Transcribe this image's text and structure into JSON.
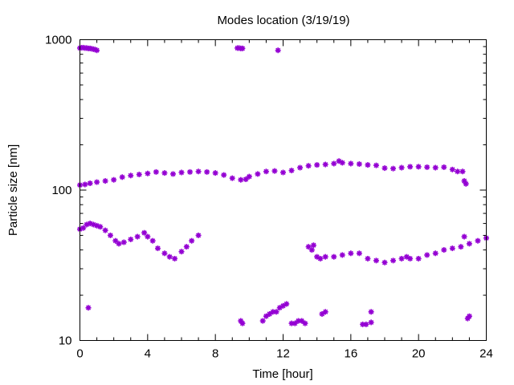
{
  "chart_data": {
    "type": "scatter",
    "title": "Modes location (3/19/19)",
    "xlabel": "Time [hour]",
    "ylabel": "Particle size [nm]",
    "xlim": [
      0,
      24
    ],
    "ylim": [
      10,
      1000
    ],
    "yscale": "log",
    "grid": false,
    "legend": "none",
    "xticks": [
      0,
      4,
      8,
      12,
      16,
      20,
      24
    ],
    "yticks": [
      10,
      100,
      1000
    ],
    "marker_color": "#9400D3",
    "series": [
      {
        "points": [
          [
            0.0,
            880
          ],
          [
            0.1,
            885
          ],
          [
            0.2,
            885
          ],
          [
            0.3,
            880
          ],
          [
            0.4,
            880
          ],
          [
            0.5,
            875
          ],
          [
            0.6,
            875
          ],
          [
            0.7,
            870
          ],
          [
            0.8,
            865
          ],
          [
            0.9,
            860
          ],
          [
            1.0,
            850
          ],
          [
            9.3,
            880
          ],
          [
            9.4,
            880
          ],
          [
            9.5,
            875
          ],
          [
            9.6,
            875
          ],
          [
            11.7,
            850
          ],
          [
            0.0,
            108
          ],
          [
            0.3,
            109
          ],
          [
            0.6,
            111
          ],
          [
            1.0,
            113
          ],
          [
            1.5,
            115
          ],
          [
            2.0,
            117
          ],
          [
            2.5,
            122
          ],
          [
            3.0,
            125
          ],
          [
            3.5,
            127
          ],
          [
            4.0,
            129
          ],
          [
            4.5,
            132
          ],
          [
            5.0,
            130
          ],
          [
            5.5,
            128
          ],
          [
            6.0,
            131
          ],
          [
            6.5,
            132
          ],
          [
            7.0,
            133
          ],
          [
            7.5,
            132
          ],
          [
            8.0,
            130
          ],
          [
            8.5,
            126
          ],
          [
            9.0,
            120
          ],
          [
            9.5,
            117
          ],
          [
            9.8,
            118
          ],
          [
            10.0,
            123
          ],
          [
            10.5,
            128
          ],
          [
            11.0,
            133
          ],
          [
            11.5,
            134
          ],
          [
            12.0,
            131
          ],
          [
            12.5,
            135
          ],
          [
            13.0,
            141
          ],
          [
            13.5,
            145
          ],
          [
            14.0,
            147
          ],
          [
            14.5,
            148
          ],
          [
            15.0,
            150
          ],
          [
            15.3,
            156
          ],
          [
            15.5,
            152
          ],
          [
            16.0,
            150
          ],
          [
            16.5,
            149
          ],
          [
            17.0,
            147
          ],
          [
            17.5,
            146
          ],
          [
            18.0,
            140
          ],
          [
            18.5,
            139
          ],
          [
            19.0,
            141
          ],
          [
            19.5,
            143
          ],
          [
            20.0,
            143
          ],
          [
            20.5,
            142
          ],
          [
            21.0,
            141
          ],
          [
            21.5,
            142
          ],
          [
            22.0,
            137
          ],
          [
            22.3,
            133
          ],
          [
            22.6,
            133
          ],
          [
            22.7,
            115
          ],
          [
            22.8,
            110
          ],
          [
            0.0,
            55
          ],
          [
            0.2,
            56
          ],
          [
            0.4,
            59
          ],
          [
            0.6,
            60
          ],
          [
            0.8,
            59
          ],
          [
            1.0,
            58
          ],
          [
            1.2,
            57
          ],
          [
            1.5,
            54
          ],
          [
            1.8,
            50
          ],
          [
            2.1,
            46
          ],
          [
            2.3,
            44
          ],
          [
            2.6,
            45
          ],
          [
            3.0,
            47
          ],
          [
            3.4,
            49
          ],
          [
            3.8,
            52
          ],
          [
            4.0,
            49
          ],
          [
            4.3,
            46
          ],
          [
            4.6,
            41
          ],
          [
            5.0,
            38
          ],
          [
            5.3,
            36
          ],
          [
            5.6,
            35
          ],
          [
            6.0,
            39
          ],
          [
            6.3,
            42
          ],
          [
            6.6,
            46
          ],
          [
            7.0,
            50
          ],
          [
            13.5,
            42
          ],
          [
            13.7,
            40
          ],
          [
            13.8,
            43
          ],
          [
            14.0,
            36
          ],
          [
            14.2,
            35
          ],
          [
            14.5,
            36
          ],
          [
            15.0,
            36
          ],
          [
            15.5,
            37
          ],
          [
            16.0,
            38
          ],
          [
            16.5,
            38
          ],
          [
            17.0,
            35
          ],
          [
            17.5,
            34
          ],
          [
            18.0,
            33
          ],
          [
            18.5,
            34
          ],
          [
            19.0,
            35
          ],
          [
            19.3,
            36
          ],
          [
            19.5,
            35
          ],
          [
            20.0,
            35
          ],
          [
            20.5,
            37
          ],
          [
            21.0,
            38
          ],
          [
            21.5,
            40
          ],
          [
            22.0,
            41
          ],
          [
            22.5,
            42
          ],
          [
            22.7,
            49
          ],
          [
            23.0,
            44
          ],
          [
            23.5,
            46
          ],
          [
            24.0,
            48
          ],
          [
            0.5,
            16.5
          ],
          [
            9.5,
            13.5
          ],
          [
            9.6,
            13.0
          ],
          [
            10.8,
            13.5
          ],
          [
            11.0,
            14.5
          ],
          [
            11.2,
            15.0
          ],
          [
            11.4,
            15.5
          ],
          [
            11.6,
            15.5
          ],
          [
            11.8,
            16.5
          ],
          [
            12.0,
            17.0
          ],
          [
            12.2,
            17.5
          ],
          [
            12.5,
            13.0
          ],
          [
            12.7,
            13.0
          ],
          [
            12.9,
            13.5
          ],
          [
            13.1,
            13.5
          ],
          [
            13.3,
            13.0
          ],
          [
            14.3,
            15.0
          ],
          [
            14.5,
            15.5
          ],
          [
            16.7,
            12.8
          ],
          [
            16.9,
            12.8
          ],
          [
            17.2,
            15.5
          ],
          [
            17.2,
            13.2
          ],
          [
            22.9,
            14.0
          ],
          [
            23.0,
            14.5
          ]
        ]
      }
    ]
  }
}
